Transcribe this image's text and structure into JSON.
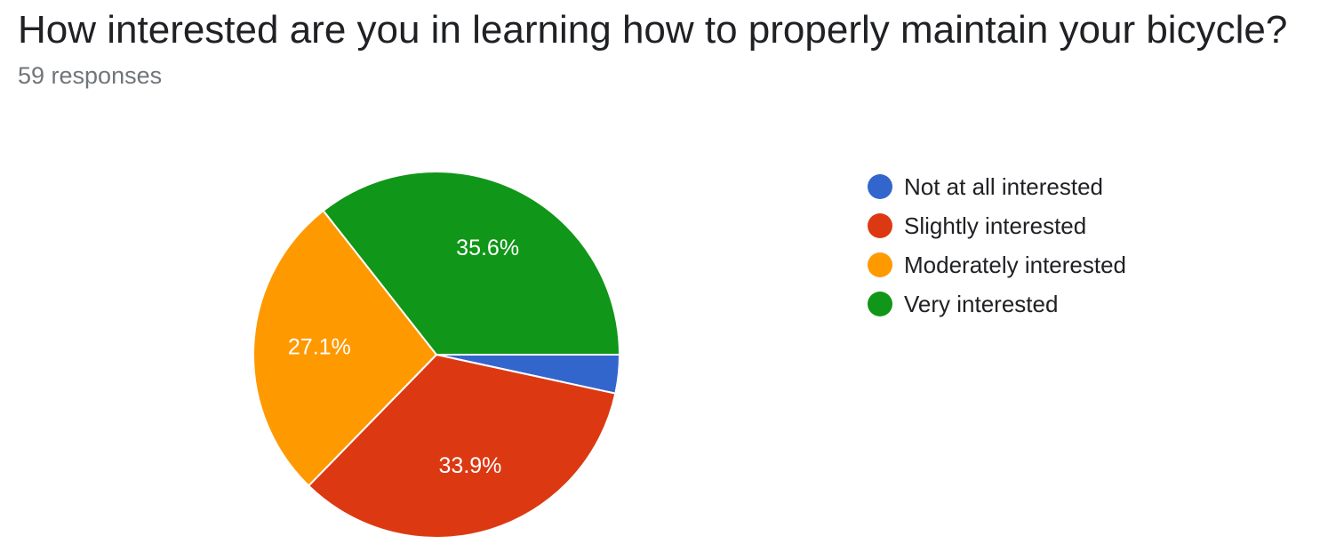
{
  "header": {
    "title": "How interested are you in learning how to properly maintain your bicycle?",
    "subtitle": "59 responses"
  },
  "chart_data": {
    "type": "pie",
    "categories": [
      "Not at all interested",
      "Slightly interested",
      "Moderately interested",
      "Very interested"
    ],
    "values": [
      3.4,
      33.9,
      27.1,
      35.6
    ],
    "value_labels": [
      "",
      "33.9%",
      "27.1%",
      "35.6%"
    ],
    "colors": [
      "#3366cc",
      "#dc3912",
      "#ff9900",
      "#109618"
    ],
    "start_angle_deg": 90,
    "direction": "clockwise",
    "legend_position": "right"
  }
}
